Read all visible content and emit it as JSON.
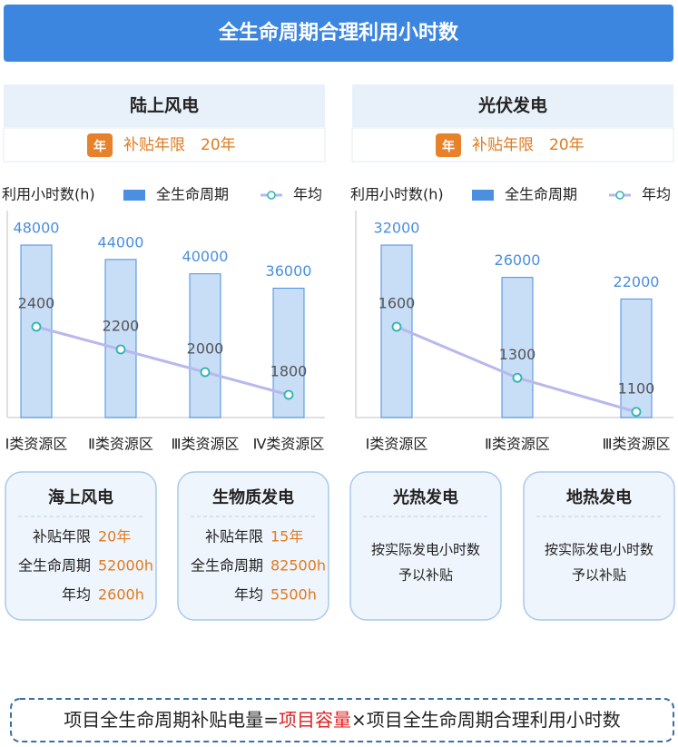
{
  "header": {
    "title": "全生命周期合理利用小时数"
  },
  "chart_data": [
    {
      "type": "bar",
      "title": "陆上风电",
      "subsidy_icon": "年",
      "subsidy_label": "补贴年限",
      "subsidy_value": "20年",
      "y_label": "利用小时数(h)",
      "categories": [
        "Ⅰ类资源区",
        "Ⅱ类资源区",
        "Ⅲ类资源区",
        "Ⅳ类资源区"
      ],
      "series": [
        {
          "name": "全生命周期",
          "type": "bar",
          "color": "#4a8fe0",
          "values": [
            48000,
            44000,
            40000,
            36000
          ]
        },
        {
          "name": "年均",
          "type": "line",
          "color": "#b8b8ee",
          "values": [
            2400,
            2200,
            2000,
            1800
          ]
        }
      ]
    },
    {
      "type": "bar",
      "title": "光伏发电",
      "subsidy_icon": "年",
      "subsidy_label": "补贴年限",
      "subsidy_value": "20年",
      "y_label": "利用小时数(h)",
      "categories": [
        "Ⅰ类资源区",
        "Ⅱ类资源区",
        "Ⅲ类资源区"
      ],
      "series": [
        {
          "name": "全生命周期",
          "type": "bar",
          "color": "#4a8fe0",
          "values": [
            32000,
            26000,
            22000
          ]
        },
        {
          "name": "年均",
          "type": "line",
          "color": "#b8b8ee",
          "values": [
            1600,
            1300,
            1100
          ]
        }
      ]
    }
  ],
  "cards": [
    {
      "title": "海上风电",
      "rows": [
        {
          "label": "补贴年限",
          "value": "20年"
        },
        {
          "label": "全生命周期",
          "value": "52000h"
        },
        {
          "label": "年均",
          "value": "2600h"
        }
      ]
    },
    {
      "title": "生物质发电",
      "rows": [
        {
          "label": "补贴年限",
          "value": "15年"
        },
        {
          "label": "全生命周期",
          "value": "82500h"
        },
        {
          "label": "年均",
          "value": "5500h"
        }
      ]
    },
    {
      "title": "光热发电",
      "lines": [
        "按实际发电小时数",
        "予以补贴"
      ]
    },
    {
      "title": "地热发电",
      "lines": [
        "按实际发电小时数",
        "予以补贴"
      ]
    }
  ],
  "formula": {
    "parts": [
      "项目全生命周期补贴电量=",
      "项目容量",
      "×项目全生命周期合理利用小时数"
    ]
  }
}
